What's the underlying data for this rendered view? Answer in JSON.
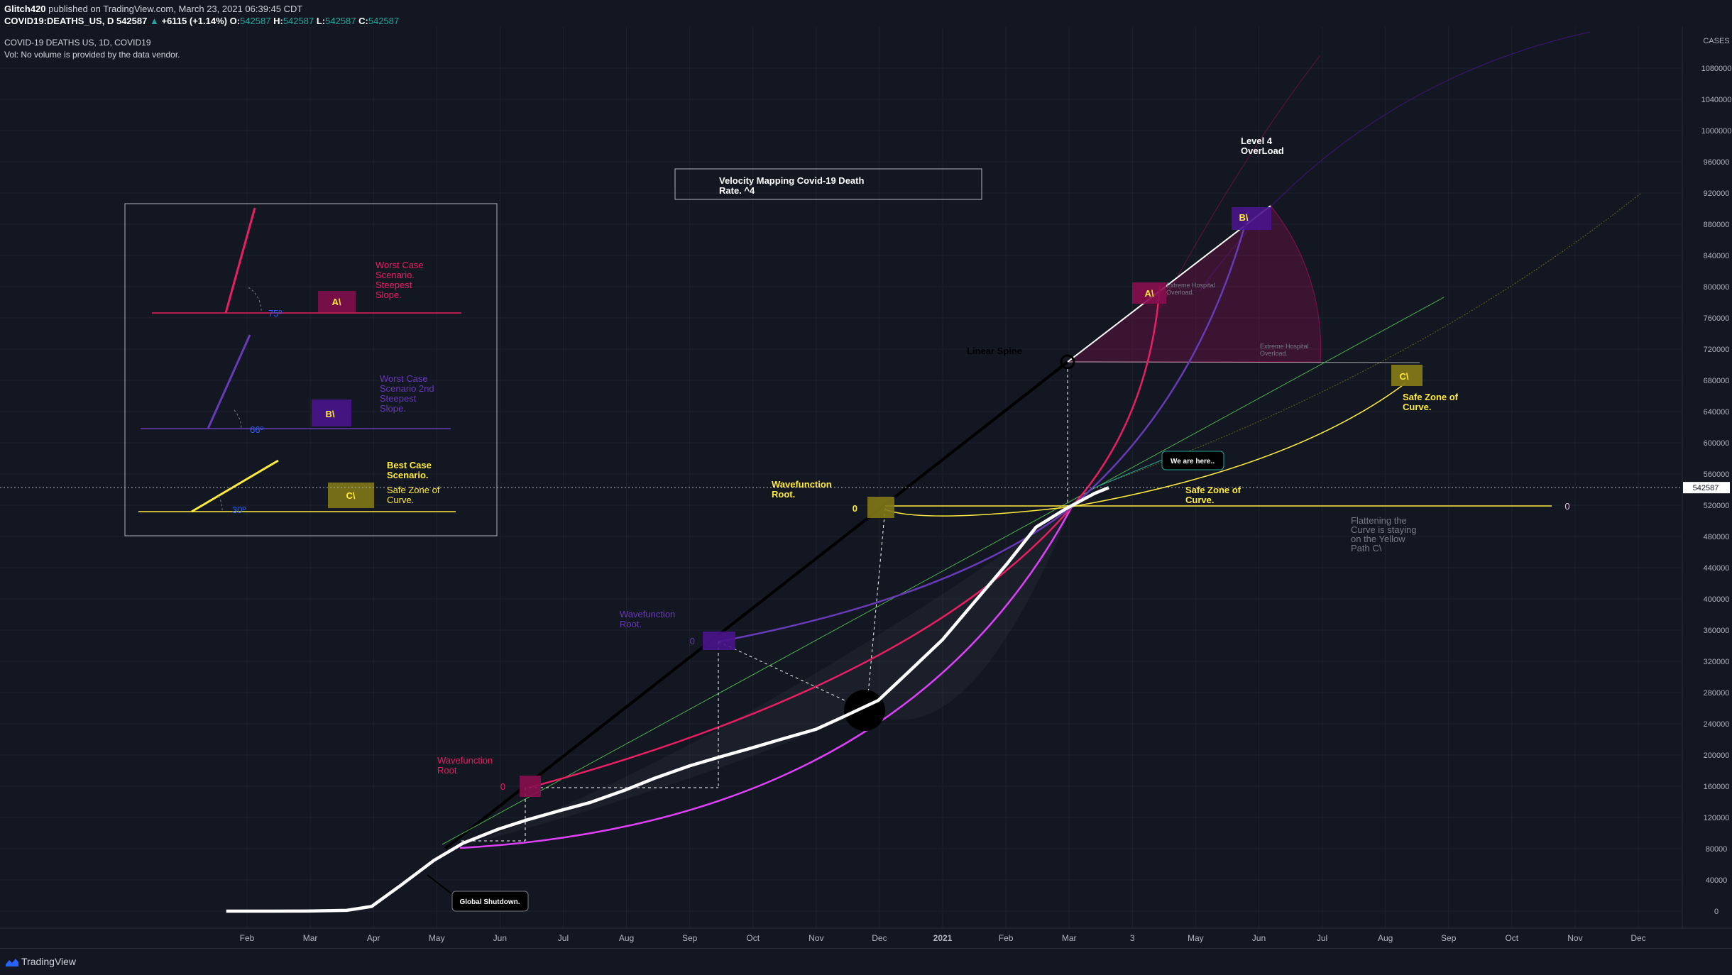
{
  "header": {
    "publisher": "Glitch420",
    "published_text": "published on TradingView.com, March 23, 2021 06:39:45 CDT",
    "symbol": "COVID19:DEATHS_US, D",
    "last": "542587",
    "change": "+6115 (+1.14%)",
    "o_label": "O:",
    "o": "542587",
    "h_label": "H:",
    "h": "542587",
    "l_label": "L:",
    "l": "542587",
    "c_label": "C:",
    "c": "542587"
  },
  "legend": {
    "line1": "COVID-19 DEATHS US, 1D, COVID19",
    "line2": "Vol: No volume is provided by the data vendor."
  },
  "axis_unit": "CASES",
  "last_price_label": "542587",
  "annotations": {
    "title_line1": "Velocity Mapping Covid-19 Death",
    "title_line2": "Rate. ^4",
    "level4_line1": "Level 4",
    "level4_line2": "OverLoad",
    "linear_spine": "Linear Spine",
    "we_are_here": "We are here..",
    "global_shutdown": "Global Shutdown.",
    "wf_root_red_1": "Wavefunction",
    "wf_root_red_2": "Root",
    "wf_root_purple_1": "Wavefunction",
    "wf_root_purple_2": "Root.",
    "wf_root_yellow_1": "Wavefunction",
    "wf_root_yellow_2": "Root.",
    "safe_zone_1": "Safe Zone of",
    "safe_zone_2": "Curve.",
    "safe_zone_right_1": "Safe Zone of",
    "safe_zone_right_2": "Curve.",
    "flatten_1": "Flattening the",
    "flatten_2": "Curve is staying",
    "flatten_3": "on the Yellow",
    "flatten_4": "Path C\\",
    "extreme_1": "Extreme Hospital",
    "extreme_2": "Overload.",
    "box_a": "A\\",
    "box_b": "B\\",
    "box_c": "C\\",
    "zero": "0"
  },
  "inset": {
    "worst_1": "Worst Case",
    "worst_2": "Scenario.",
    "worst_3": "Steepest",
    "worst_4": "Slope.",
    "worst2_1": "Worst Case",
    "worst2_2": "Scenario 2nd",
    "worst2_3": "Steepest",
    "worst2_4": "Slope.",
    "best_1": "Best Case",
    "best_2": "Scenario.",
    "safe_1": "Safe Zone of",
    "safe_2": "Curve.",
    "angle_a": "75º",
    "angle_b": "66º",
    "angle_c": "30º"
  },
  "colors": {
    "background": "#131722",
    "series_line": "#ffffff",
    "path_a": "#e91e63",
    "path_b": "#673ab7",
    "path_c": "#ffeb3b",
    "magenta": "#e040fb",
    "green": "#4caf50",
    "axis_text": "#b2b5be"
  },
  "chart_data": {
    "type": "line",
    "title": "COVID-19 DEATHS US, 1D, COVID19",
    "ylabel": "CASES",
    "ylim": [
      0,
      1100000
    ],
    "y_ticks": [
      0,
      40000,
      80000,
      120000,
      160000,
      200000,
      240000,
      280000,
      320000,
      360000,
      400000,
      440000,
      480000,
      520000,
      560000,
      600000,
      640000,
      680000,
      720000,
      760000,
      800000,
      840000,
      880000,
      920000,
      960000,
      1000000,
      1040000,
      1080000
    ],
    "x_ticks": [
      "Feb",
      "Mar",
      "Apr",
      "May",
      "Jun",
      "Jul",
      "Aug",
      "Sep",
      "Oct",
      "Nov",
      "Dec",
      "2021",
      "Feb",
      "Mar",
      "3",
      "May",
      "Jun",
      "Jul",
      "Aug",
      "Sep",
      "Oct",
      "Nov",
      "Dec"
    ],
    "series": [
      {
        "x": [
          "2020-01-22",
          "2020-03-01",
          "2020-03-20",
          "2020-04-01",
          "2020-04-15",
          "2020-05-01",
          "2020-05-15",
          "2020-06-01",
          "2020-06-15",
          "2020-07-01",
          "2020-07-15",
          "2020-08-01",
          "2020-08-15",
          "2020-09-01",
          "2020-09-15",
          "2020-10-01",
          "2020-10-15",
          "2020-11-01",
          "2020-11-15",
          "2020-12-01",
          "2020-12-15",
          "2021-01-01",
          "2021-01-15",
          "2021-02-01",
          "2021-02-15",
          "2021-03-01",
          "2021-03-15",
          "2021-03-22"
        ],
        "values": [
          0,
          100,
          1000,
          6000,
          33000,
          65000,
          87000,
          105000,
          117000,
          129000,
          139000,
          155000,
          170000,
          186000,
          197000,
          209000,
          220000,
          233000,
          250000,
          270000,
          305000,
          348000,
          392000,
          445000,
          492000,
          515000,
          535000,
          542587
        ]
      }
    ],
    "last_value": 542587
  }
}
